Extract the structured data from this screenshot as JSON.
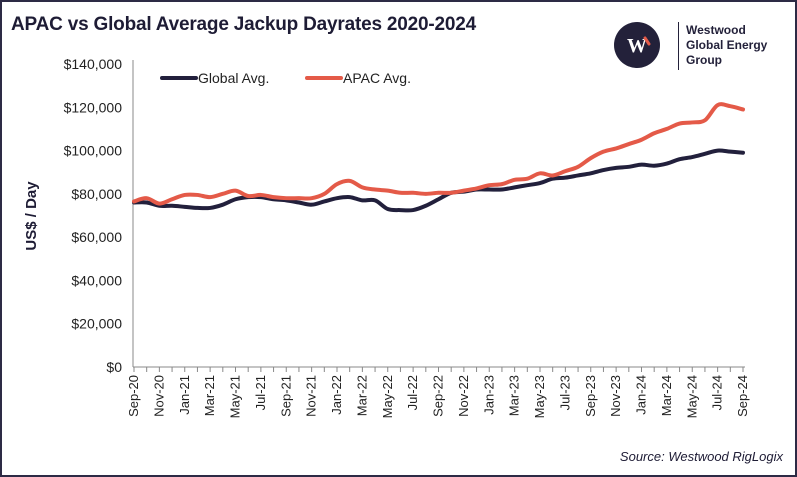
{
  "title": "APAC vs Global Average Jackup Dayrates 2020-2024",
  "logo": {
    "lines": [
      "Westwood",
      "Global Energy",
      "Group"
    ],
    "mark": "W"
  },
  "source": "Source: Westwood RigLogix",
  "colors": {
    "global": "#22203c",
    "apac": "#e45a48",
    "frame": "#2d2b45"
  },
  "chart_data": {
    "type": "line",
    "title": "APAC vs Global Average Jackup Dayrates 2020-2024",
    "xlabel": "",
    "ylabel": "US$ / Day",
    "ylim": [
      0,
      140000
    ],
    "yticks": [
      0,
      20000,
      40000,
      60000,
      80000,
      100000,
      120000,
      140000
    ],
    "ytick_labels": [
      "$0",
      "$20,000",
      "$40,000",
      "$60,000",
      "$80,000",
      "$100,000",
      "$120,000",
      "$140,000"
    ],
    "legend_position": "top-left",
    "grid": false,
    "categories": [
      "Sep-20",
      "Oct-20",
      "Nov-20",
      "Dec-20",
      "Jan-21",
      "Feb-21",
      "Mar-21",
      "Apr-21",
      "May-21",
      "Jun-21",
      "Jul-21",
      "Aug-21",
      "Sep-21",
      "Oct-21",
      "Nov-21",
      "Dec-21",
      "Jan-22",
      "Feb-22",
      "Mar-22",
      "Apr-22",
      "May-22",
      "Jun-22",
      "Jul-22",
      "Aug-22",
      "Sep-22",
      "Oct-22",
      "Nov-22",
      "Dec-22",
      "Jan-23",
      "Feb-23",
      "Mar-23",
      "Apr-23",
      "May-23",
      "Jun-23",
      "Jul-23",
      "Aug-23",
      "Sep-23",
      "Oct-23",
      "Nov-23",
      "Dec-23",
      "Jan-24",
      "Feb-24",
      "Mar-24",
      "Apr-24",
      "May-24",
      "Jun-24",
      "Jul-24",
      "Aug-24",
      "Sep-24"
    ],
    "tick_labels": [
      "Sep-20",
      "Nov-20",
      "Jan-21",
      "Mar-21",
      "May-21",
      "Jul-21",
      "Sep-21",
      "Nov-21",
      "Jan-22",
      "Mar-22",
      "May-22",
      "Jul-22",
      "Sep-22",
      "Nov-22",
      "Jan-23",
      "Mar-23",
      "May-23",
      "Jul-23",
      "Sep-23",
      "Nov-23",
      "Jan-24",
      "Mar-24",
      "May-24",
      "Jul-24",
      "Sep-24"
    ],
    "series": [
      {
        "name": "Global Avg.",
        "values": [
          76000,
          76000,
          74500,
          74500,
          74000,
          73500,
          73500,
          75000,
          77500,
          78500,
          78500,
          77500,
          77000,
          76000,
          75000,
          76500,
          78000,
          78500,
          77000,
          77000,
          73000,
          72500,
          72500,
          74500,
          77500,
          80500,
          81000,
          82000,
          82000,
          82000,
          83000,
          84000,
          85000,
          87000,
          87500,
          88500,
          89500,
          91000,
          92000,
          92500,
          93500,
          93000,
          94000,
          96000,
          97000,
          98500,
          100000,
          99500,
          99000
        ]
      },
      {
        "name": "APAC Avg.",
        "values": [
          76500,
          78000,
          75500,
          77500,
          79500,
          79500,
          78500,
          80000,
          81500,
          79000,
          79500,
          78500,
          78000,
          78000,
          78000,
          80000,
          84500,
          86000,
          83000,
          82000,
          81500,
          80500,
          80500,
          80000,
          80500,
          80500,
          81500,
          82500,
          84000,
          84500,
          86500,
          87000,
          89500,
          88500,
          90500,
          92500,
          96500,
          99500,
          101000,
          103000,
          105000,
          108000,
          110000,
          112500,
          113000,
          114000,
          121000,
          120500,
          119000
        ]
      }
    ]
  }
}
